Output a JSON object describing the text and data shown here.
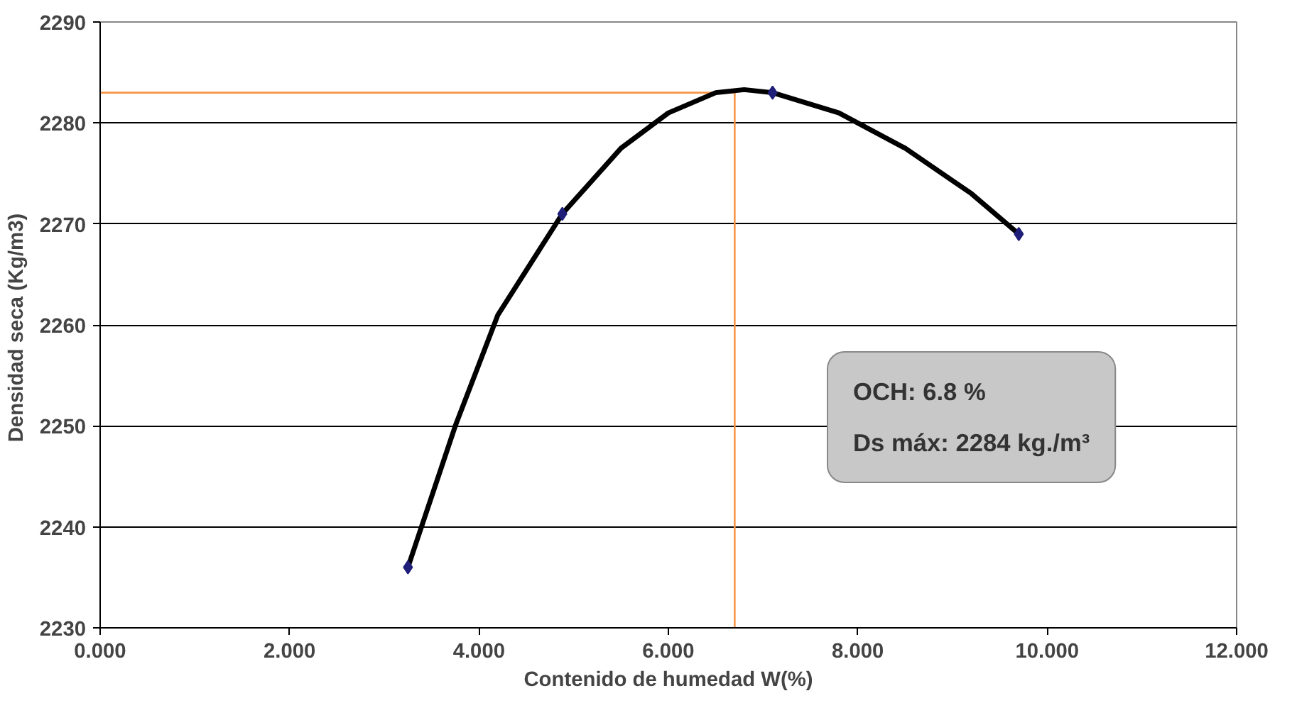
{
  "chart_data": {
    "type": "scatter",
    "xlabel": "Contenido de humedad W(%)",
    "ylabel": "Densidad seca  (Kg/m3)",
    "xlim": [
      0,
      12
    ],
    "ylim": [
      2230,
      2290
    ],
    "xticks": [
      {
        "value": 0,
        "label": "0.000"
      },
      {
        "value": 2,
        "label": "2.000"
      },
      {
        "value": 4,
        "label": "4.000"
      },
      {
        "value": 6,
        "label": "6.000"
      },
      {
        "value": 8,
        "label": "8.000"
      },
      {
        "value": 10,
        "label": "10.000"
      },
      {
        "value": 12,
        "label": "12.000"
      }
    ],
    "yticks": [
      2230,
      2240,
      2250,
      2260,
      2270,
      2280,
      2290
    ],
    "grid": "y",
    "series": [
      {
        "type": "line",
        "color": "#000000",
        "marker": "none",
        "x": [
          3.25,
          3.75,
          4.2,
          4.88,
          5.5,
          6.0,
          6.5,
          6.8,
          7.1,
          7.8,
          8.5,
          9.2,
          9.7
        ],
        "values": [
          2236,
          2250,
          2261,
          2271,
          2277.5,
          2281,
          2283,
          2283.3,
          2283,
          2281,
          2277.5,
          2273,
          2269
        ]
      },
      {
        "color": "#1f1f7a",
        "marker": "diamond",
        "x": [
          3.25,
          4.88,
          7.1,
          9.7
        ],
        "values": [
          2236,
          2271,
          2283,
          2269
        ]
      }
    ],
    "ref_lines": [
      {
        "axis": "y",
        "value": 2283,
        "color": "#f79646"
      },
      {
        "axis": "x",
        "value": 6.7,
        "color": "#f79646"
      }
    ],
    "annotations": [
      "OCH: 6.8 %",
      "Ds máx: 2284 kg./m³"
    ]
  }
}
